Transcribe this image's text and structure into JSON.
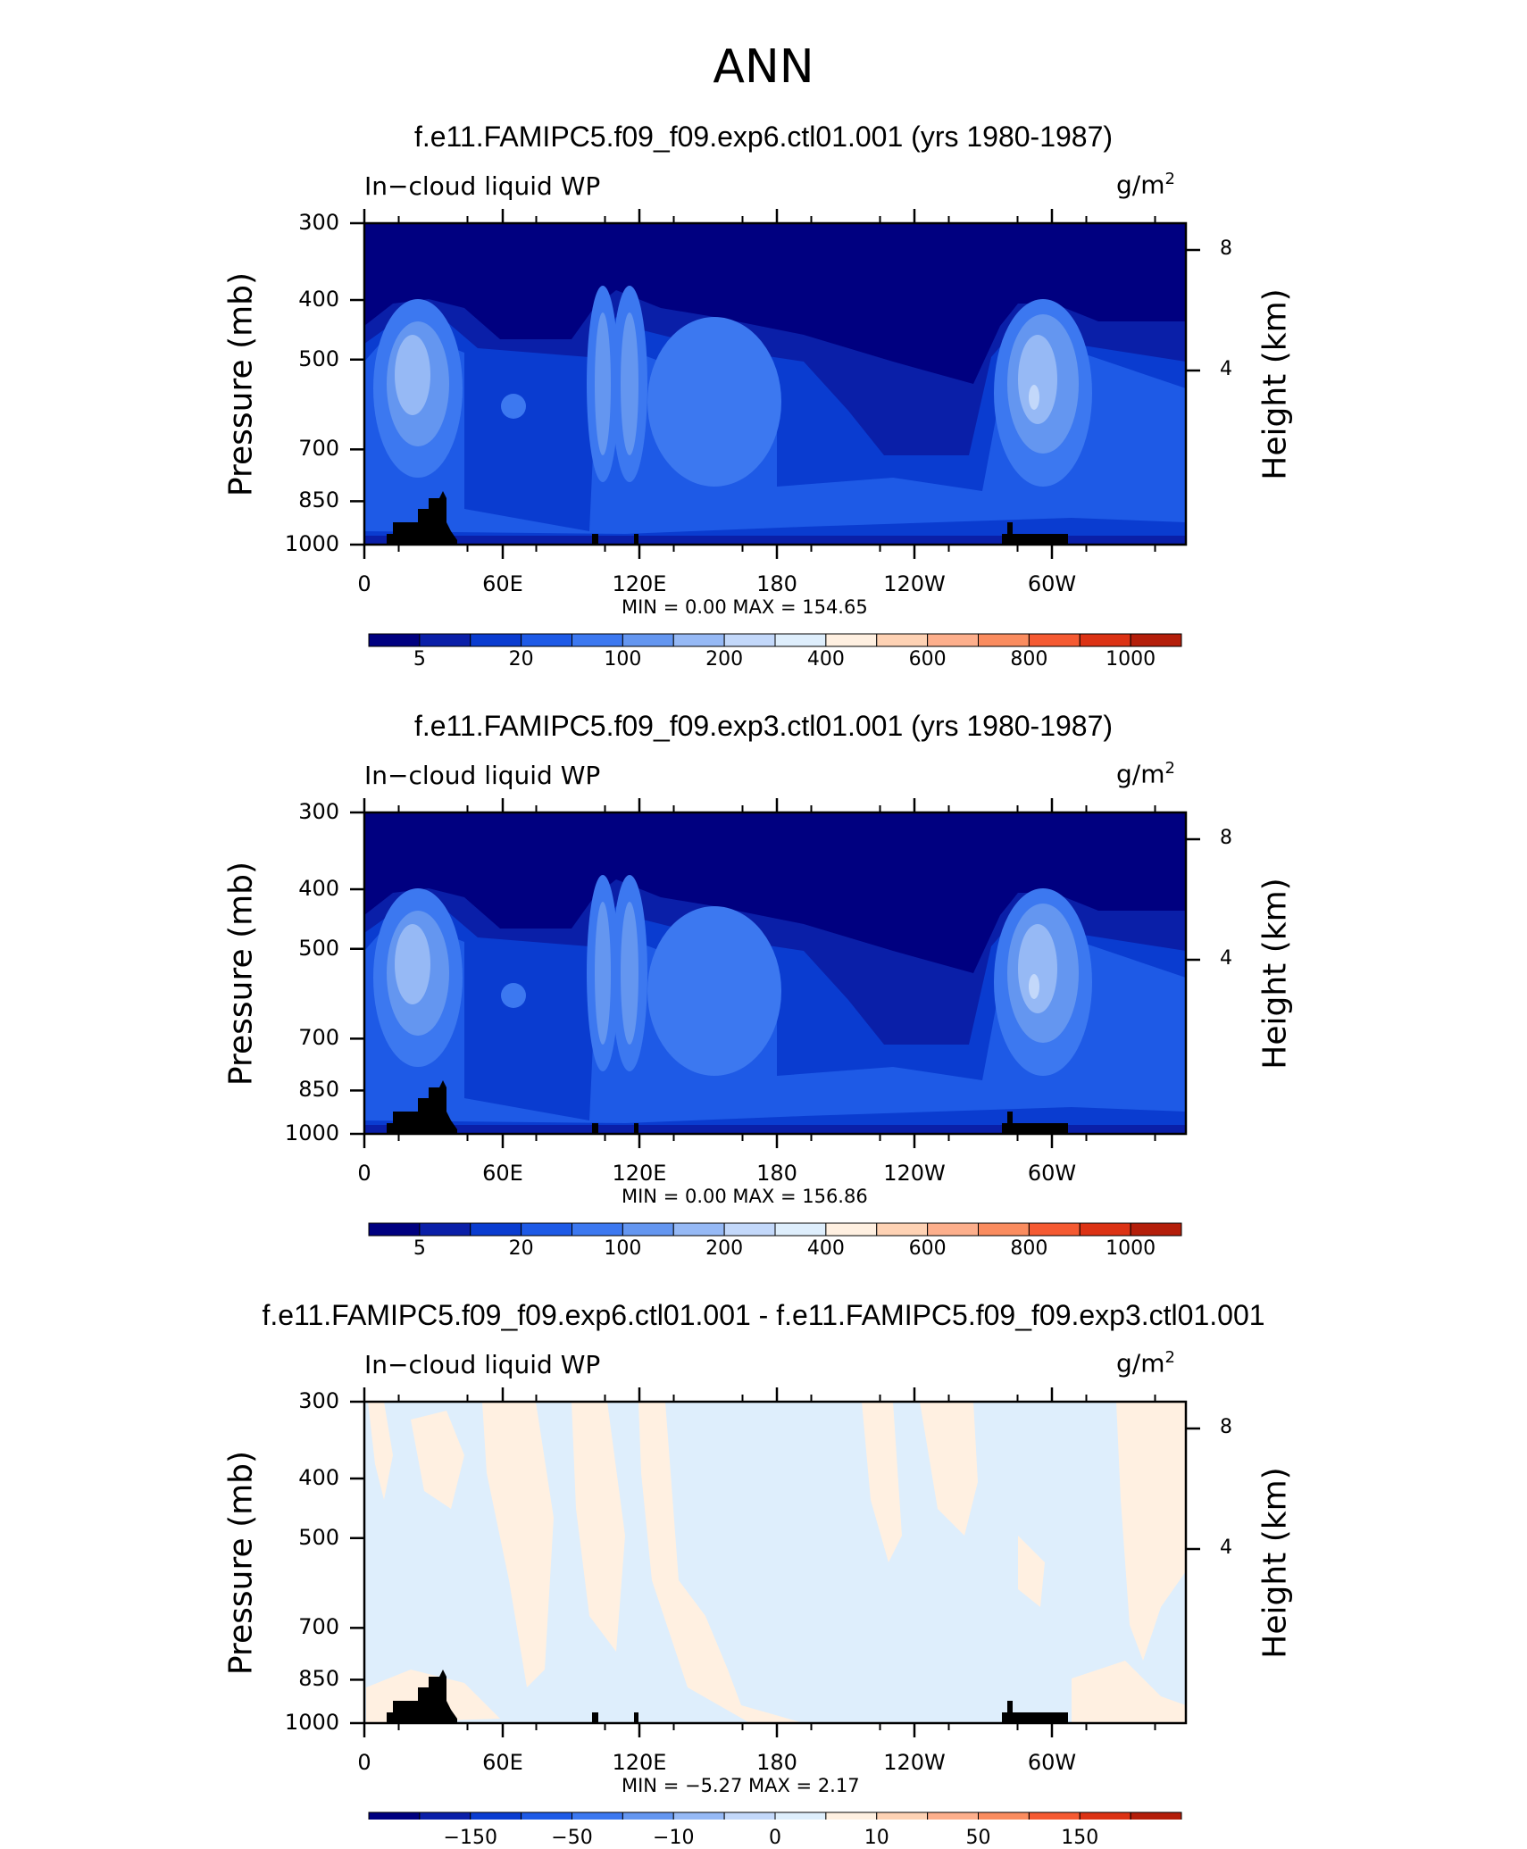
{
  "title": "ANN",
  "panels": [
    {
      "title": "f.e11.FAMIPC5.f09_f09.exp6.ctl01.001 (yrs 1980-1987)",
      "variable": "In−cloud liquid WP",
      "units": "g/m",
      "units_sup": "2",
      "stats": "MIN =     0.00   MAX  =  154.65",
      "colorbar_labels": [
        "5",
        "20",
        "100",
        "200",
        "400",
        "600",
        "800",
        "1000"
      ]
    },
    {
      "title": "f.e11.FAMIPC5.f09_f09.exp3.ctl01.001 (yrs 1980-1987)",
      "variable": "In−cloud liquid WP",
      "units": "g/m",
      "units_sup": "2",
      "stats": "MIN =     0.00   MAX  =  156.86",
      "colorbar_labels": [
        "5",
        "20",
        "100",
        "200",
        "400",
        "600",
        "800",
        "1000"
      ]
    },
    {
      "title": "f.e11.FAMIPC5.f09_f09.exp6.ctl01.001 - f.e11.FAMIPC5.f09_f09.exp3.ctl01.001",
      "variable": "In−cloud liquid WP",
      "units": "g/m",
      "units_sup": "2",
      "stats": "MIN =   −5.27   MAX  =     2.17",
      "colorbar_labels": [
        "−150",
        "−50",
        "−10",
        "0",
        "10",
        "50",
        "150"
      ]
    }
  ],
  "axes": {
    "ylabel_left": "Pressure (mb)",
    "ylabel_right": "Height (km)",
    "pressure_ticks": [
      "300",
      "400",
      "500",
      "700",
      "850",
      "1000"
    ],
    "height_ticks": [
      "8",
      "4"
    ],
    "x_ticks": [
      "0",
      "60E",
      "120E",
      "180",
      "120W",
      "60W"
    ]
  },
  "colors": {
    "colormap": [
      "#000080",
      "#0a1fa8",
      "#0a3cd0",
      "#1e5ae6",
      "#3c78f0",
      "#6496f0",
      "#96b9f5",
      "#c3d8fa",
      "#deeefc",
      "#fff0e1",
      "#fed2b4",
      "#fdaf8c",
      "#fa8c5f",
      "#f55a32",
      "#dc3214",
      "#b41e0a",
      "#8c0000"
    ],
    "background": "#ffffff",
    "land": "#000000"
  },
  "chart_data": [
    {
      "type": "heatmap",
      "title": "f.e11.FAMIPC5.f09_f09.exp6.ctl01.001 (yrs 1980-1987)",
      "xlabel": "",
      "ylabel": "Pressure (mb)",
      "ylabel_right": "Height (km)",
      "x_ticks": [
        "0",
        "60E",
        "120E",
        "180",
        "120W",
        "60W"
      ],
      "y_ticks": [
        300,
        400,
        500,
        700,
        850,
        1000
      ],
      "ylim": [
        1000,
        300
      ],
      "levels": [
        5,
        20,
        100,
        200,
        400,
        600,
        800,
        1000
      ],
      "min": 0.0,
      "max": 154.65
    },
    {
      "type": "heatmap",
      "title": "f.e11.FAMIPC5.f09_f09.exp3.ctl01.001 (yrs 1980-1987)",
      "xlabel": "",
      "ylabel": "Pressure (mb)",
      "ylabel_right": "Height (km)",
      "x_ticks": [
        "0",
        "60E",
        "120E",
        "180",
        "120W",
        "60W"
      ],
      "y_ticks": [
        300,
        400,
        500,
        700,
        850,
        1000
      ],
      "ylim": [
        1000,
        300
      ],
      "levels": [
        5,
        20,
        100,
        200,
        400,
        600,
        800,
        1000
      ],
      "min": 0.0,
      "max": 156.86
    },
    {
      "type": "heatmap",
      "title": "f.e11.FAMIPC5.f09_f09.exp6.ctl01.001 - f.e11.FAMIPC5.f09_f09.exp3.ctl01.001",
      "xlabel": "",
      "ylabel": "Pressure (mb)",
      "ylabel_right": "Height (km)",
      "x_ticks": [
        "0",
        "60E",
        "120E",
        "180",
        "120W",
        "60W"
      ],
      "y_ticks": [
        300,
        400,
        500,
        700,
        850,
        1000
      ],
      "ylim": [
        1000,
        300
      ],
      "levels": [
        -150,
        -50,
        -10,
        0,
        10,
        50,
        150
      ],
      "min": -5.27,
      "max": 2.17
    }
  ]
}
